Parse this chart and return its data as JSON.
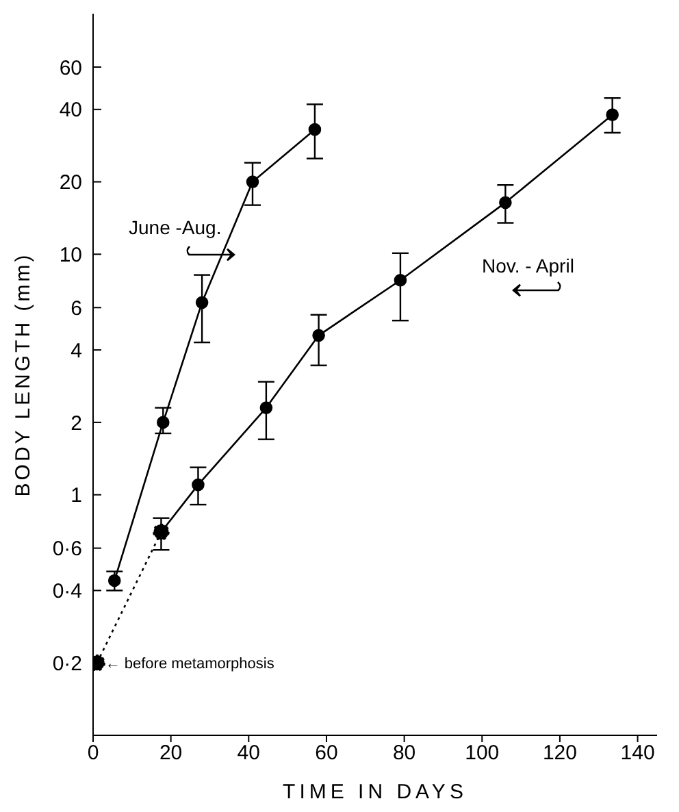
{
  "chart_data": {
    "type": "line",
    "xlabel": "TIME  IN  DAYS",
    "ylabel": "BODY  LENGTH  (mm)",
    "log": "y",
    "xlim": [
      0,
      145
    ],
    "xticks": [
      0,
      20,
      40,
      60,
      80,
      100,
      120,
      140
    ],
    "ylim": [
      0.1,
      100
    ],
    "yticks": [
      {
        "value": 0.2,
        "label": "0·2"
      },
      {
        "value": 0.4,
        "label": "0·4"
      },
      {
        "value": 0.6,
        "label": "0·6"
      },
      1,
      2,
      4,
      6,
      10,
      20,
      40,
      60
    ],
    "grid": false,
    "legend": false,
    "marker": "circle",
    "line_style": "solid",
    "annotations": [
      {
        "text": "← before metamorphosis",
        "x": 1,
        "y": 0.2
      }
    ],
    "series": [
      {
        "name": "June -Aug.",
        "color": "#000000",
        "x": [
          5.5,
          18,
          28,
          41,
          57
        ],
        "values": [
          0.44,
          2.0,
          6.3,
          20,
          33
        ],
        "errors": [
          [
            0.4,
            0.48
          ],
          [
            1.8,
            2.3
          ],
          [
            4.3,
            8.2
          ],
          [
            16,
            24
          ],
          [
            25,
            42
          ]
        ]
      },
      {
        "name": "Nov. - April",
        "color": "#000000",
        "x": [
          17.5,
          27,
          44.5,
          58,
          79,
          106,
          133.5
        ],
        "values": [
          0.7,
          1.1,
          2.3,
          4.6,
          7.8,
          16.4,
          38
        ],
        "errors": [
          [
            0.59,
            0.8
          ],
          [
            0.91,
            1.3
          ],
          [
            1.7,
            2.95
          ],
          [
            3.45,
            5.6
          ],
          [
            5.3,
            10.1
          ],
          [
            13.5,
            19.4
          ],
          [
            32,
            44.6
          ]
        ]
      },
      {
        "color": "#000000",
        "line_style": "dotted",
        "x": [
          1,
          17.5
        ],
        "values": [
          0.2,
          0.7
        ]
      }
    ]
  }
}
